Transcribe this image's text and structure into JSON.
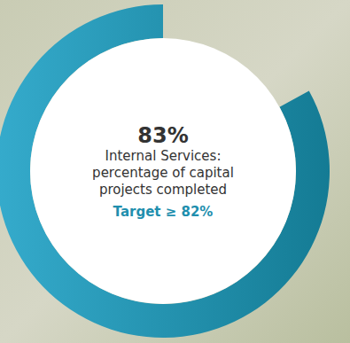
{
  "chart_data": {
    "type": "progress_ring",
    "values": [
      83
    ],
    "value_labels": [
      "83%"
    ],
    "ylim": [
      0,
      100
    ],
    "label": "Internal Services: percentage of capital projects completed",
    "target": {
      "value": 82,
      "label": "Target ≥ 82%"
    },
    "color": "#1f8fae"
  }
}
